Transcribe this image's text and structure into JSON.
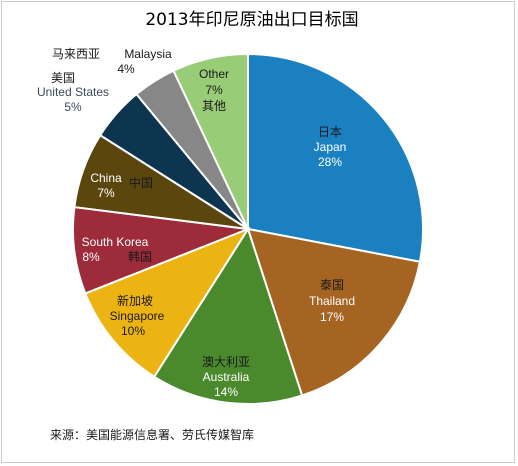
{
  "chart_data": {
    "type": "pie",
    "title": "2013年印尼原油出口目标国",
    "source": "来源：美国能源信息署、劳氏传媒智库",
    "unit": "%",
    "slices": [
      {
        "cn": "日本",
        "en": "Japan",
        "value": 28,
        "value_label": "28%",
        "color": "#1a80c0"
      },
      {
        "cn": "泰国",
        "en": "Thailand",
        "value": 17,
        "value_label": "17%",
        "color": "#a56422"
      },
      {
        "cn": "澳大利亚",
        "en": "Australia",
        "value": 14,
        "value_label": "14%",
        "color": "#4b8a2c"
      },
      {
        "cn": "新加坡",
        "en": "Singapore",
        "value": 10,
        "value_label": "10%",
        "color": "#ecb412"
      },
      {
        "cn": "韩国",
        "en": "South Korea",
        "value": 8,
        "value_label": "8%",
        "color": "#9e2b3a"
      },
      {
        "cn": "中国",
        "en": "China",
        "value": 7,
        "value_label": "7%",
        "color": "#5b470d"
      },
      {
        "cn": "美国",
        "en": "United States",
        "value": 5,
        "value_label": "5%",
        "color": "#0d3550"
      },
      {
        "cn": "马来西亚",
        "en": "Malaysia",
        "value": 4,
        "value_label": "4%",
        "color": "#878787"
      },
      {
        "cn": "其他",
        "en": "Other",
        "value": 7,
        "value_label": "7%",
        "color": "#99cc77"
      }
    ]
  }
}
